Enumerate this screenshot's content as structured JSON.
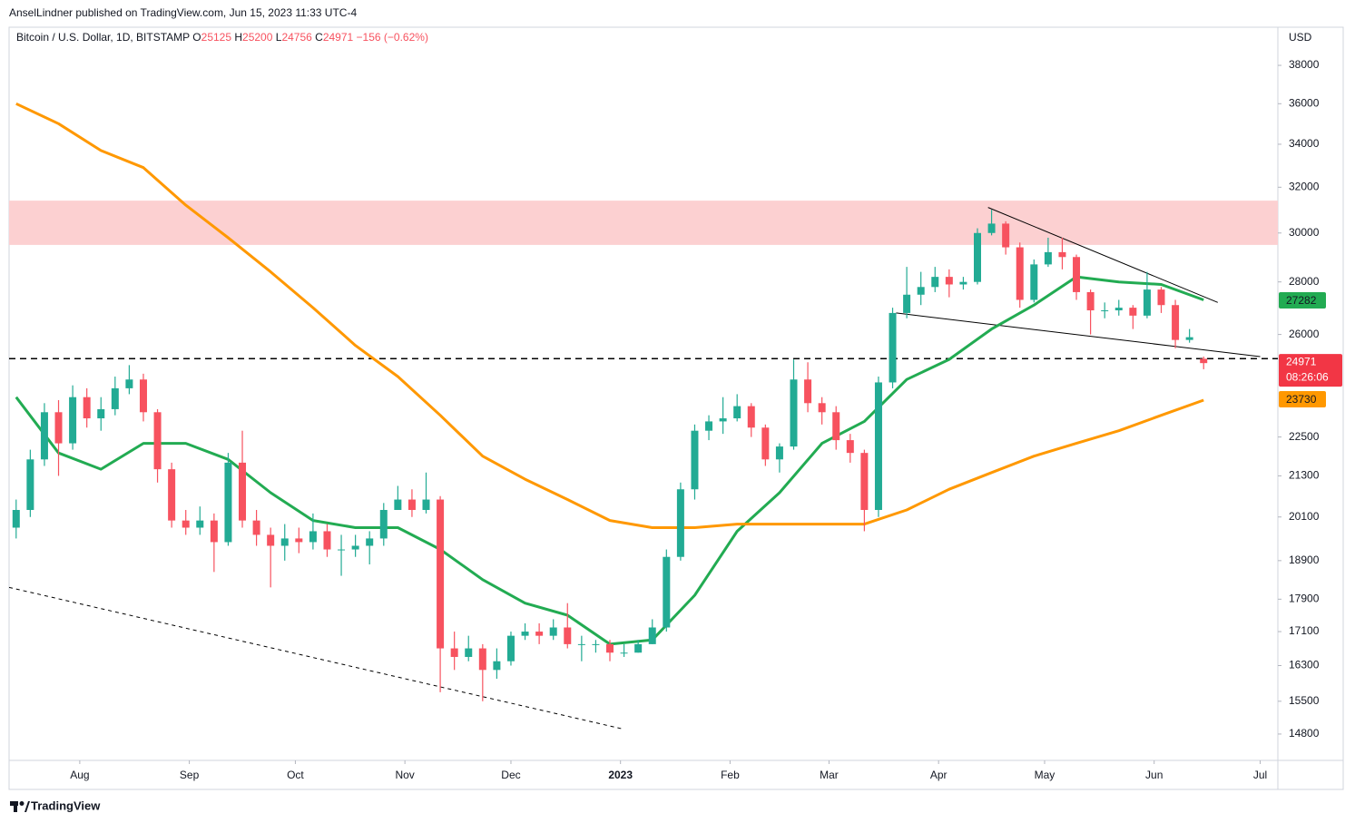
{
  "header": {
    "author_line": "AnselLindner published on TradingView.com, Jun 15, 2023 11:33 UTC-4",
    "symbol": "Bitcoin / U.S. Dollar, 1D, BITSTAMP",
    "ohlc_legend": [
      [
        "O",
        "25125"
      ],
      [
        "H",
        "25200"
      ],
      [
        "L",
        "24756"
      ],
      [
        "C",
        "24971"
      ]
    ],
    "change": "−156 (−0.62%)"
  },
  "footer": {
    "brand": "TradingView"
  },
  "chart_data": {
    "type": "candlestick",
    "log_scale": true,
    "currency": "USD",
    "up_color": "#22ab94",
    "down_color": "#f7525f",
    "xlim": [
      0,
      359
    ],
    "xticks": [
      {
        "value": 20,
        "label": "Aug"
      },
      {
        "value": 51,
        "label": "Sep"
      },
      {
        "value": 81,
        "label": "Oct"
      },
      {
        "value": 112,
        "label": "Nov"
      },
      {
        "value": 142,
        "label": "Dec"
      },
      {
        "value": 173,
        "label": "2023"
      },
      {
        "value": 204,
        "label": "Feb"
      },
      {
        "value": 232,
        "label": "Mar"
      },
      {
        "value": 263,
        "label": "Apr"
      },
      {
        "value": 293,
        "label": "May"
      },
      {
        "value": 324,
        "label": "Jun"
      },
      {
        "value": 354,
        "label": "Jul"
      }
    ],
    "ylim": [
      14260,
      40100
    ],
    "yticks": [
      14800,
      15500,
      16300,
      17100,
      17900,
      18900,
      20100,
      21300,
      22500,
      26000,
      28000,
      30000,
      32000,
      34000,
      36000,
      38000
    ],
    "x": [
      2,
      6,
      10,
      14,
      18,
      22,
      26,
      30,
      34,
      38,
      42,
      46,
      50,
      54,
      58,
      62,
      66,
      70,
      74,
      78,
      82,
      86,
      90,
      94,
      98,
      102,
      106,
      110,
      114,
      118,
      122,
      126,
      130,
      134,
      138,
      142,
      146,
      150,
      154,
      158,
      162,
      166,
      170,
      174,
      178,
      182,
      186,
      190,
      194,
      198,
      202,
      206,
      210,
      214,
      218,
      222,
      226,
      230,
      234,
      238,
      242,
      246,
      250,
      254,
      258,
      262,
      266,
      270,
      274,
      278,
      282,
      286,
      290,
      294,
      298,
      302,
      306,
      310,
      314,
      318,
      322,
      326,
      330,
      334,
      338
    ],
    "open": [
      19800,
      20300,
      21800,
      23300,
      22300,
      23800,
      23100,
      23400,
      24100,
      24400,
      23300,
      21500,
      20000,
      19800,
      20000,
      19400,
      21700,
      20000,
      19600,
      19300,
      19500,
      19400,
      19700,
      19200,
      19200,
      19300,
      19500,
      20300,
      20600,
      20300,
      20600,
      16700,
      16500,
      16700,
      16200,
      16400,
      17000,
      17100,
      17000,
      17200,
      16800,
      16800,
      16800,
      16600,
      16600,
      16800,
      17200,
      19000,
      20900,
      22700,
      23000,
      23100,
      23500,
      22800,
      21800,
      22200,
      24400,
      23600,
      23300,
      22400,
      22000,
      20300,
      24300,
      26800,
      27500,
      27800,
      28200,
      27900,
      28000,
      30000,
      30400,
      29400,
      27300,
      28700,
      29200,
      29000,
      27600,
      26900,
      26900,
      27000,
      26700,
      27700,
      27100,
      25800,
      25125
    ],
    "high": [
      20600,
      22100,
      23600,
      23700,
      24200,
      24100,
      23800,
      24500,
      24900,
      24600,
      23400,
      21700,
      20300,
      20400,
      20200,
      22000,
      22700,
      20300,
      19800,
      19900,
      19800,
      20200,
      19900,
      19600,
      19600,
      19700,
      20500,
      21000,
      20900,
      21400,
      20700,
      17100,
      17000,
      16800,
      16700,
      17100,
      17300,
      17300,
      17400,
      17800,
      17000,
      16900,
      16900,
      16800,
      16900,
      17400,
      19200,
      21100,
      22900,
      23200,
      23800,
      23900,
      23600,
      22900,
      22300,
      25100,
      25000,
      23800,
      23500,
      22600,
      22100,
      24500,
      27000,
      28600,
      28400,
      28600,
      28500,
      28200,
      30200,
      31000,
      30500,
      29600,
      28900,
      29800,
      29800,
      29100,
      27700,
      27200,
      27300,
      27100,
      28400,
      27800,
      27300,
      26200,
      25200
    ],
    "low": [
      19500,
      20100,
      21600,
      21300,
      22100,
      22800,
      22700,
      23200,
      23900,
      23000,
      21100,
      19800,
      19600,
      19600,
      18600,
      19300,
      19800,
      19300,
      18200,
      18900,
      19100,
      19200,
      19000,
      18500,
      19000,
      18800,
      19300,
      20300,
      20100,
      20200,
      15700,
      16200,
      16400,
      15500,
      16000,
      16300,
      16900,
      16800,
      16900,
      16700,
      16400,
      16600,
      16400,
      16500,
      16600,
      16800,
      17100,
      18900,
      20600,
      22400,
      22600,
      23000,
      22500,
      21600,
      21400,
      22100,
      23300,
      22900,
      22100,
      21700,
      19700,
      20100,
      24100,
      26600,
      27100,
      27600,
      27400,
      27700,
      27900,
      29900,
      29100,
      27000,
      27200,
      28600,
      28500,
      27300,
      26000,
      26600,
      26700,
      26200,
      26600,
      26800,
      25500,
      25700,
      24756
    ],
    "close": [
      20300,
      21800,
      23300,
      22300,
      23800,
      23100,
      23400,
      24100,
      24400,
      23300,
      21500,
      20000,
      19800,
      20000,
      19400,
      21700,
      20000,
      19600,
      19300,
      19500,
      19400,
      19700,
      19200,
      19200,
      19300,
      19500,
      20300,
      20600,
      20300,
      20600,
      16700,
      16500,
      16700,
      16200,
      16400,
      17000,
      17100,
      17000,
      17200,
      16800,
      16800,
      16800,
      16600,
      16600,
      16800,
      17200,
      19000,
      20900,
      22700,
      23000,
      23100,
      23500,
      22800,
      21800,
      22200,
      24400,
      23600,
      23300,
      22400,
      22000,
      20300,
      24300,
      26800,
      27500,
      27800,
      28200,
      27900,
      28000,
      30000,
      30400,
      29400,
      27300,
      28700,
      29200,
      29000,
      27600,
      26900,
      26900,
      27000,
      26700,
      27700,
      27100,
      25800,
      25900,
      24971
    ],
    "lines": [
      {
        "color": "#22ab52",
        "x": [
          2,
          14,
          26,
          38,
          50,
          62,
          74,
          86,
          98,
          110,
          122,
          134,
          146,
          158,
          170,
          182,
          194,
          206,
          218,
          230,
          242,
          254,
          266,
          278,
          290,
          302,
          314,
          326,
          338
        ],
        "values": [
          23800,
          22000,
          21500,
          22300,
          22300,
          21800,
          20800,
          20000,
          19800,
          19800,
          19200,
          18400,
          17800,
          17500,
          16800,
          16900,
          18000,
          19700,
          20800,
          22300,
          23000,
          24400,
          25100,
          26200,
          27100,
          28200,
          28000,
          27900,
          27300
        ]
      },
      {
        "color": "#ff9800",
        "x": [
          2,
          14,
          26,
          38,
          50,
          62,
          74,
          86,
          98,
          110,
          122,
          134,
          146,
          158,
          170,
          182,
          194,
          206,
          218,
          230,
          242,
          254,
          266,
          278,
          290,
          302,
          314,
          326,
          338
        ],
        "values": [
          36000,
          35000,
          33700,
          32900,
          31200,
          29800,
          28400,
          27000,
          25600,
          24500,
          23200,
          21900,
          21200,
          20600,
          20000,
          19800,
          19800,
          19900,
          19900,
          19900,
          19900,
          20300,
          20900,
          21400,
          21900,
          22300,
          22700,
          23200,
          23700
        ]
      }
    ],
    "price_labels": [
      {
        "value": 27282,
        "color": "#22ab52"
      },
      {
        "value": 23730,
        "color": "#ff9800"
      }
    ],
    "last_price": {
      "value": 24971,
      "countdown": "08:26:06",
      "color": "#f23645"
    },
    "zones": [
      {
        "from": 29500,
        "to": 31400,
        "color": "#fcd0d1"
      }
    ],
    "hlines": [
      {
        "value": 25130,
        "color": "#000000"
      }
    ],
    "trendlines": [
      {
        "x": [
          277,
          342
        ],
        "y": [
          31100,
          27200
        ],
        "color": "#000000",
        "dash": "none"
      },
      {
        "x": [
          251,
          354
        ],
        "y": [
          26800,
          25200
        ],
        "color": "#000000",
        "dash": "none"
      },
      {
        "x": [
          0,
          174
        ],
        "y": [
          18200,
          14900
        ],
        "color": "#000000",
        "dash": "4 4"
      }
    ]
  }
}
